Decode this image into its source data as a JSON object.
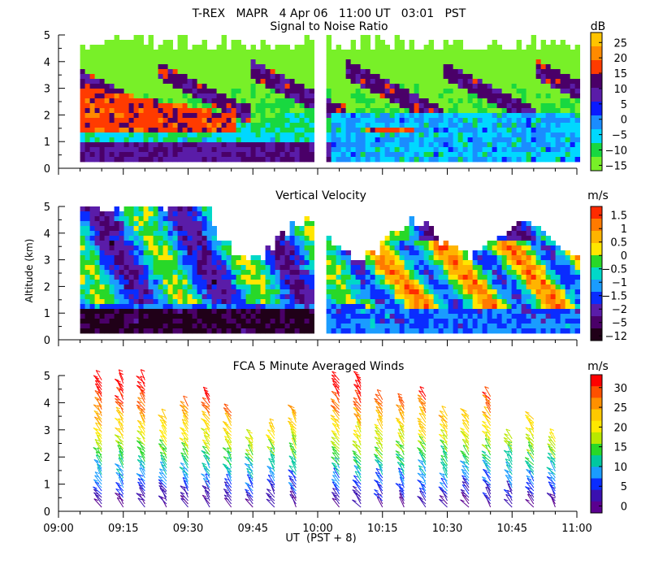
{
  "figure_title": "T-REX   MAPR   4 Apr 06   11:00 UT   03:01   PST",
  "chart_data": [
    {
      "type": "heatmap",
      "title": "Signal to Noise Ratio",
      "ylabel": "",
      "ylim": [
        0,
        5
      ],
      "yticks": [
        "0",
        "1",
        "2",
        "3",
        "4",
        "5"
      ],
      "xlim_ut": [
        "09:00",
        "11:00"
      ],
      "data_gap_ut": [
        "09:59",
        "10:02"
      ],
      "colorbar_unit": "dB",
      "colorbar_labels": [
        "25",
        "20",
        "15",
        "10",
        "5",
        "0",
        "−5",
        "−10",
        "−15"
      ],
      "colorbar_colors": [
        "#ffc400",
        "#ff8a00",
        "#ff3b00",
        "#4a0068",
        "#5a1ca8",
        "#0a1aff",
        "#1a8cff",
        "#00d8ff",
        "#18d840",
        "#78f028"
      ]
    },
    {
      "type": "heatmap",
      "title": "Vertical Velocity",
      "ylabel": "Altitude (km)",
      "ylim": [
        0,
        5
      ],
      "yticks": [
        "0",
        "1",
        "2",
        "3",
        "4",
        "5"
      ],
      "xlim_ut": [
        "09:00",
        "11:00"
      ],
      "data_gap_ut": [
        "09:59",
        "10:02"
      ],
      "colorbar_unit": "m/s",
      "colorbar_labels": [
        "1.5",
        "1",
        "0.5",
        "0",
        "−0.5",
        "−1",
        "−1.5",
        "−2",
        "−5",
        "−12"
      ],
      "colorbar_colors": [
        "#ff2a00",
        "#ff7a00",
        "#ffb400",
        "#ffe600",
        "#28d828",
        "#00d8c8",
        "#1a9cff",
        "#0a2cff",
        "#5a1ca8",
        "#4a0068",
        "#200018"
      ]
    },
    {
      "type": "wind_barbs",
      "title": "FCA 5 Minute Averaged Winds",
      "ylabel": "",
      "ylim": [
        0,
        5
      ],
      "yticks": [
        "0",
        "1",
        "2",
        "3",
        "4",
        "5"
      ],
      "xlabel": "UT  (PST + 8)",
      "xticks": [
        "09:00",
        "09:15",
        "09:30",
        "09:45",
        "10:00",
        "10:15",
        "10:30",
        "10:45",
        "11:00"
      ],
      "colorbar_unit": "m/s",
      "colorbar_labels": [
        "30",
        "25",
        "20",
        "15",
        "10",
        "5",
        "0"
      ],
      "colorbar_colors": [
        "#ff0000",
        "#ff5000",
        "#ff9000",
        "#ffc800",
        "#ffe800",
        "#b8e800",
        "#28d828",
        "#00c8a0",
        "#1a9cff",
        "#0a2cff",
        "#3a10b0",
        "#5a0090"
      ]
    }
  ]
}
